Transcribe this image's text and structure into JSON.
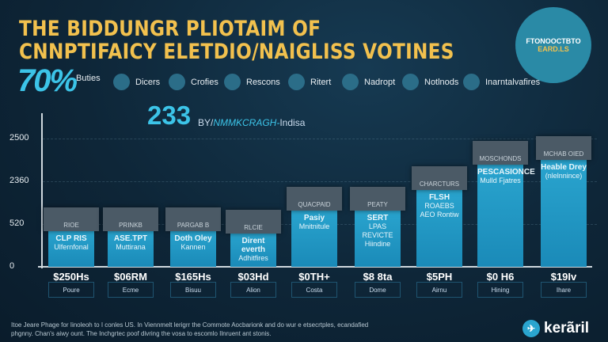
{
  "title_lines": [
    "THE BIDDUNGR PLIOTAIM OF",
    "CNNPTIFAICY ELETDIO/NAIGLISS VOTINES"
  ],
  "logo_text": [
    "FTONOOCTBTO",
    "EARD.LS"
  ],
  "headline_percent": "70%",
  "legend": [
    "Buties",
    "Dicers",
    "Crofies",
    "Rescons",
    "Ritert",
    "Nadropt",
    "Notlnods",
    "Inarntalvafires"
  ],
  "callout": {
    "value": "233",
    "prefix": "BY/",
    "italic": "NMMKCRAGH-",
    "suffix": "Indisa"
  },
  "chart_data": {
    "type": "bar",
    "title": "THE BIDDUNGR PLIOTAIM OF CNNPTIFAICY ELETDIO/NAIGLISS VOTINES",
    "y_tick_labels": [
      "0",
      "520",
      "2360",
      "2500"
    ],
    "y_note": "values in tick-index units (axis ticks unevenly labelled)",
    "ylim": [
      0,
      3.6
    ],
    "categories": [
      "Poure",
      "Ecme",
      "Bisuu",
      "Alion",
      "Costa",
      "Dome",
      "Airnu",
      "Hining",
      "Ihare"
    ],
    "value_labels": [
      "$250Hs",
      "$06RM",
      "$165Hs",
      "$03Hd",
      "$0TH+",
      "$8 8ta",
      "$5PH",
      "$0 H6",
      "$19Iv"
    ],
    "values": [
      1.39,
      1.39,
      1.39,
      1.33,
      1.87,
      1.87,
      2.35,
      2.94,
      3.06
    ],
    "header_labels": [
      "RIOE",
      "PRINKB",
      "PARGAB B",
      "RLCIE",
      "QUACPAID",
      "PEATY",
      "CHARCTURS",
      "MOSCHONDS",
      "MCHAB OIED"
    ],
    "bar_texts": [
      [
        "CLP RIS",
        "Ulfernfonal"
      ],
      [
        "ASE.TPT",
        "Muttirana"
      ],
      [
        "Doth Oley",
        "Kannen"
      ],
      [
        "Dirent everth",
        "Adhitfires"
      ],
      [
        "Pasiy",
        "Mnitnitule"
      ],
      [
        "SERT",
        "LPAS REVICTE Hiindine"
      ],
      [
        "FLSH",
        "ROAEBS AEO Rontiw"
      ],
      [
        "PESCASIONCE",
        "Mulld Fjatres"
      ],
      [
        "Heable Drey",
        "(nlelnnince)"
      ]
    ],
    "grid": true,
    "bar_color": "#2aa5cf",
    "header_color": "#4b5a66"
  },
  "footer": "Itoe Jeare Phage for Iinoleoh to I conles US. In Viennmelt lerigrr the Commote Aocbarionk and do wur e etsecrtples, ecandafied phgnny. Chan's aiwy ount. The Inchgrtec poof divring the vosa to escomlo Ilnruent ant stonis.",
  "brand": "kerãril"
}
